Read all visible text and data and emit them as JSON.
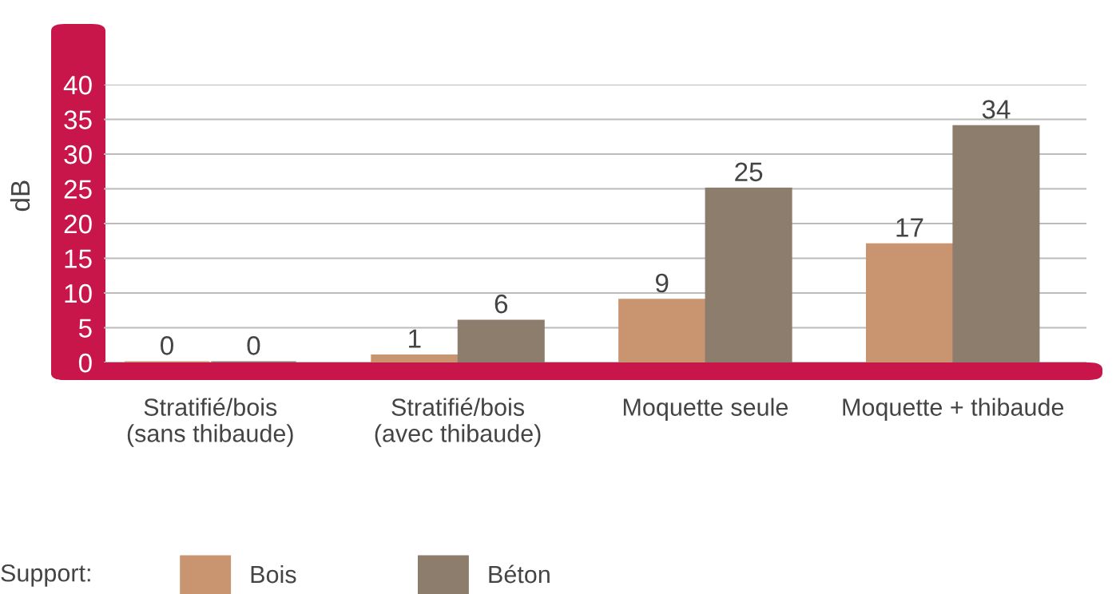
{
  "chart_data": {
    "type": "bar",
    "ylabel": "dB",
    "legend_title": "Support:",
    "categories": [
      "Stratifié/bois\n(sans thibaude)",
      "Stratifié/bois\n(avec thibaude)",
      "Moquette seule",
      "Moquette + thibaude"
    ],
    "series": [
      {
        "name": "Bois",
        "color": "#c99470",
        "values": [
          0,
          1,
          9,
          17
        ]
      },
      {
        "name": "Béton",
        "color": "#8c7d6c",
        "values": [
          0,
          6,
          25,
          34
        ]
      }
    ],
    "ylim": [
      0,
      40
    ],
    "yticks": [
      0,
      5,
      10,
      15,
      20,
      25,
      30,
      35,
      40
    ],
    "grid": "y",
    "legend": "bottom left",
    "data_labels": true
  }
}
